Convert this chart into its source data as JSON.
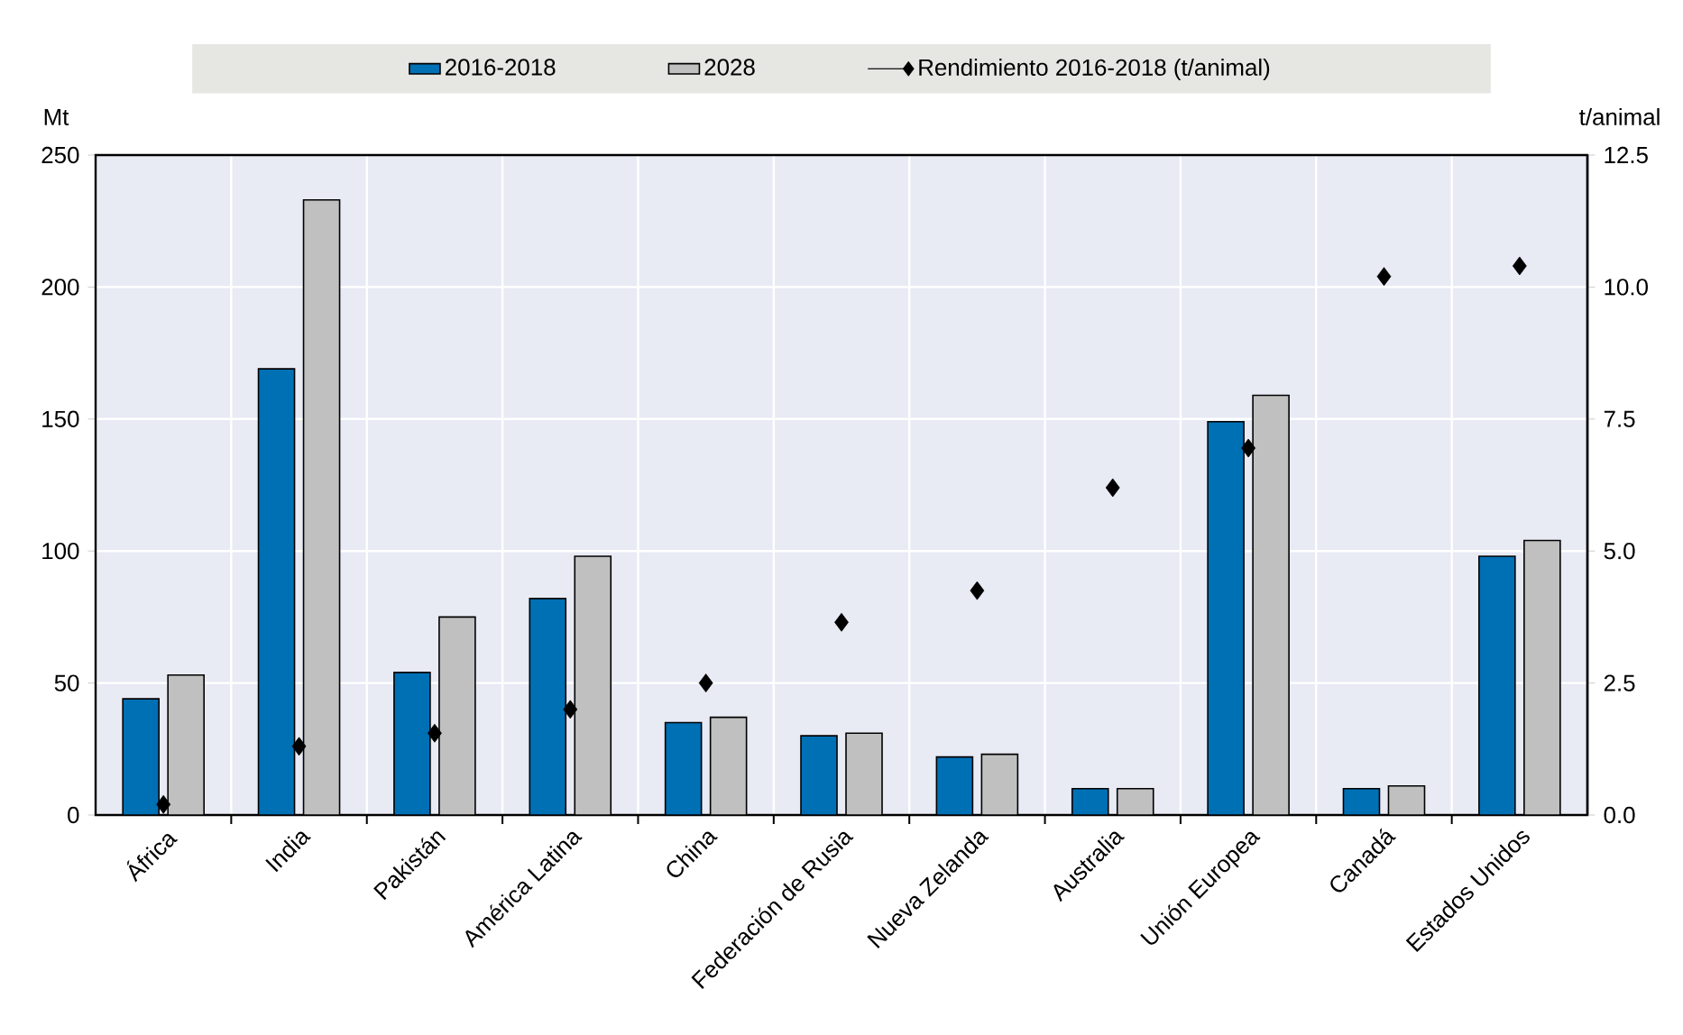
{
  "chart_data": {
    "type": "bar",
    "categories": [
      "África",
      "India",
      "Pakistán",
      "América Latina",
      "China",
      "Federación de Rusia",
      "Nueva Zelanda",
      "Australia",
      "Unión Europea",
      "Canadá",
      "Estados Unidos"
    ],
    "series": [
      {
        "name": "2016-2018",
        "color": "#0070b5",
        "values": [
          44,
          169,
          54,
          82,
          35,
          30,
          22,
          10,
          149,
          10,
          98
        ]
      },
      {
        "name": "2028",
        "color": "#c0c0c0",
        "values": [
          53,
          233,
          75,
          98,
          37,
          31,
          23,
          10,
          159,
          11,
          104
        ]
      },
      {
        "name": "Rendimiento 2016-2018 (t/animal)",
        "type": "scatter",
        "axis": "y2",
        "marker": "diamond",
        "color": "#000000",
        "values": [
          0.2,
          1.3,
          1.55,
          2.0,
          2.5,
          3.65,
          4.25,
          6.2,
          6.95,
          10.2,
          10.4
        ]
      }
    ],
    "ylabel": "Mt",
    "y2label": "t/animal",
    "ylim": [
      0,
      250
    ],
    "yticks": [
      0,
      50,
      100,
      150,
      200,
      250
    ],
    "y2lim": [
      0,
      12.5
    ],
    "y2ticks": [
      {
        "value": 0,
        "label": "0.0"
      },
      2.5,
      {
        "value": 5,
        "label": "5.0"
      },
      7.5,
      {
        "value": 10,
        "label": "10.0"
      },
      12.5
    ],
    "grid": true,
    "legend": "top"
  }
}
